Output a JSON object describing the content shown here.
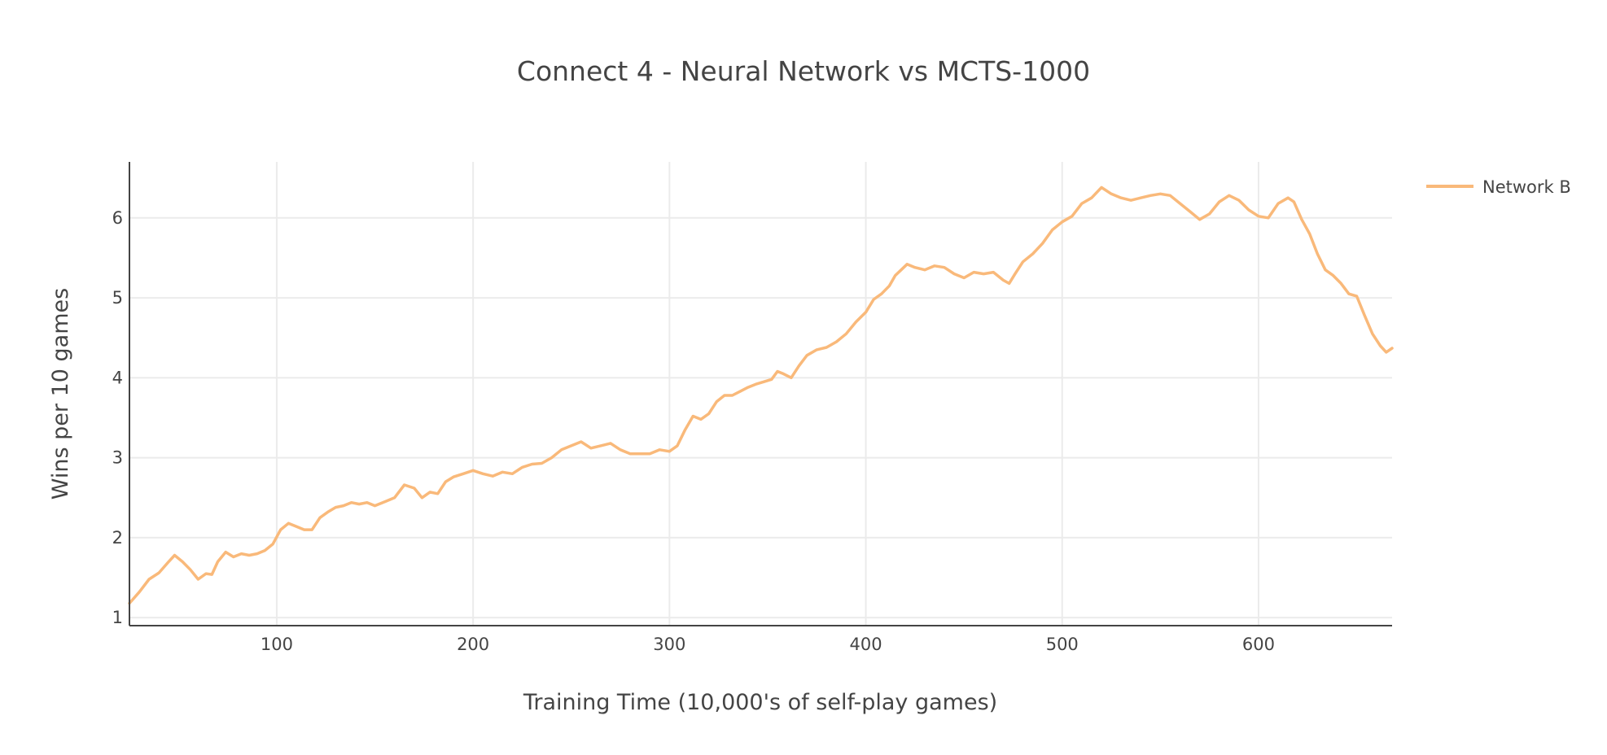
{
  "chart_data": {
    "type": "line",
    "title": "Connect 4 - Neural Network vs MCTS-1000",
    "xlabel": "Training Time (10,000's of self-play games)",
    "ylabel": "Wins per 10 games",
    "xlim": [
      25,
      668
    ],
    "ylim": [
      0.9,
      6.7
    ],
    "xticks": [
      100,
      200,
      300,
      400,
      500,
      600
    ],
    "yticks": [
      1,
      2,
      3,
      4,
      5,
      6
    ],
    "grid": true,
    "legend_position": "top-right",
    "series": [
      {
        "name": "Network B",
        "color": "#f9b97a",
        "points": [
          [
            25,
            1.18
          ],
          [
            30,
            1.32
          ],
          [
            35,
            1.48
          ],
          [
            40,
            1.56
          ],
          [
            45,
            1.7
          ],
          [
            48,
            1.78
          ],
          [
            52,
            1.7
          ],
          [
            56,
            1.6
          ],
          [
            60,
            1.48
          ],
          [
            64,
            1.55
          ],
          [
            67,
            1.54
          ],
          [
            70,
            1.7
          ],
          [
            74,
            1.82
          ],
          [
            78,
            1.76
          ],
          [
            82,
            1.8
          ],
          [
            86,
            1.78
          ],
          [
            90,
            1.8
          ],
          [
            94,
            1.84
          ],
          [
            98,
            1.92
          ],
          [
            102,
            2.1
          ],
          [
            106,
            2.18
          ],
          [
            110,
            2.14
          ],
          [
            114,
            2.1
          ],
          [
            118,
            2.1
          ],
          [
            122,
            2.25
          ],
          [
            126,
            2.32
          ],
          [
            130,
            2.38
          ],
          [
            134,
            2.4
          ],
          [
            138,
            2.44
          ],
          [
            142,
            2.42
          ],
          [
            146,
            2.44
          ],
          [
            150,
            2.4
          ],
          [
            155,
            2.45
          ],
          [
            160,
            2.5
          ],
          [
            165,
            2.66
          ],
          [
            170,
            2.62
          ],
          [
            174,
            2.5
          ],
          [
            178,
            2.57
          ],
          [
            182,
            2.55
          ],
          [
            186,
            2.7
          ],
          [
            190,
            2.76
          ],
          [
            195,
            2.8
          ],
          [
            200,
            2.84
          ],
          [
            205,
            2.8
          ],
          [
            210,
            2.77
          ],
          [
            215,
            2.82
          ],
          [
            220,
            2.8
          ],
          [
            225,
            2.88
          ],
          [
            230,
            2.92
          ],
          [
            235,
            2.93
          ],
          [
            240,
            3.0
          ],
          [
            245,
            3.1
          ],
          [
            250,
            3.15
          ],
          [
            255,
            3.2
          ],
          [
            260,
            3.12
          ],
          [
            265,
            3.15
          ],
          [
            270,
            3.18
          ],
          [
            275,
            3.1
          ],
          [
            280,
            3.05
          ],
          [
            285,
            3.05
          ],
          [
            290,
            3.05
          ],
          [
            295,
            3.1
          ],
          [
            300,
            3.08
          ],
          [
            304,
            3.15
          ],
          [
            308,
            3.35
          ],
          [
            312,
            3.52
          ],
          [
            316,
            3.48
          ],
          [
            320,
            3.55
          ],
          [
            324,
            3.7
          ],
          [
            328,
            3.78
          ],
          [
            332,
            3.78
          ],
          [
            336,
            3.83
          ],
          [
            340,
            3.88
          ],
          [
            344,
            3.92
          ],
          [
            348,
            3.95
          ],
          [
            352,
            3.98
          ],
          [
            355,
            4.08
          ],
          [
            358,
            4.05
          ],
          [
            362,
            4.0
          ],
          [
            366,
            4.15
          ],
          [
            370,
            4.28
          ],
          [
            375,
            4.35
          ],
          [
            380,
            4.38
          ],
          [
            385,
            4.45
          ],
          [
            390,
            4.55
          ],
          [
            395,
            4.7
          ],
          [
            400,
            4.82
          ],
          [
            404,
            4.98
          ],
          [
            408,
            5.05
          ],
          [
            412,
            5.15
          ],
          [
            415,
            5.28
          ],
          [
            418,
            5.35
          ],
          [
            421,
            5.42
          ],
          [
            425,
            5.38
          ],
          [
            430,
            5.35
          ],
          [
            435,
            5.4
          ],
          [
            440,
            5.38
          ],
          [
            445,
            5.3
          ],
          [
            450,
            5.25
          ],
          [
            455,
            5.32
          ],
          [
            460,
            5.3
          ],
          [
            465,
            5.32
          ],
          [
            470,
            5.22
          ],
          [
            473,
            5.18
          ],
          [
            476,
            5.3
          ],
          [
            480,
            5.45
          ],
          [
            485,
            5.55
          ],
          [
            490,
            5.68
          ],
          [
            495,
            5.85
          ],
          [
            500,
            5.95
          ],
          [
            505,
            6.02
          ],
          [
            510,
            6.18
          ],
          [
            515,
            6.25
          ],
          [
            520,
            6.38
          ],
          [
            525,
            6.3
          ],
          [
            530,
            6.25
          ],
          [
            535,
            6.22
          ],
          [
            540,
            6.25
          ],
          [
            545,
            6.28
          ],
          [
            550,
            6.3
          ],
          [
            555,
            6.28
          ],
          [
            560,
            6.18
          ],
          [
            565,
            6.08
          ],
          [
            570,
            5.98
          ],
          [
            575,
            6.05
          ],
          [
            580,
            6.2
          ],
          [
            585,
            6.28
          ],
          [
            590,
            6.22
          ],
          [
            595,
            6.1
          ],
          [
            600,
            6.02
          ],
          [
            605,
            6.0
          ],
          [
            610,
            6.18
          ],
          [
            615,
            6.25
          ],
          [
            618,
            6.2
          ],
          [
            622,
            5.98
          ],
          [
            626,
            5.8
          ],
          [
            630,
            5.55
          ],
          [
            634,
            5.35
          ],
          [
            638,
            5.28
          ],
          [
            642,
            5.18
          ],
          [
            646,
            5.05
          ],
          [
            650,
            5.02
          ],
          [
            654,
            4.78
          ],
          [
            658,
            4.55
          ],
          [
            662,
            4.4
          ],
          [
            665,
            4.32
          ],
          [
            668,
            4.37
          ]
        ]
      }
    ]
  }
}
